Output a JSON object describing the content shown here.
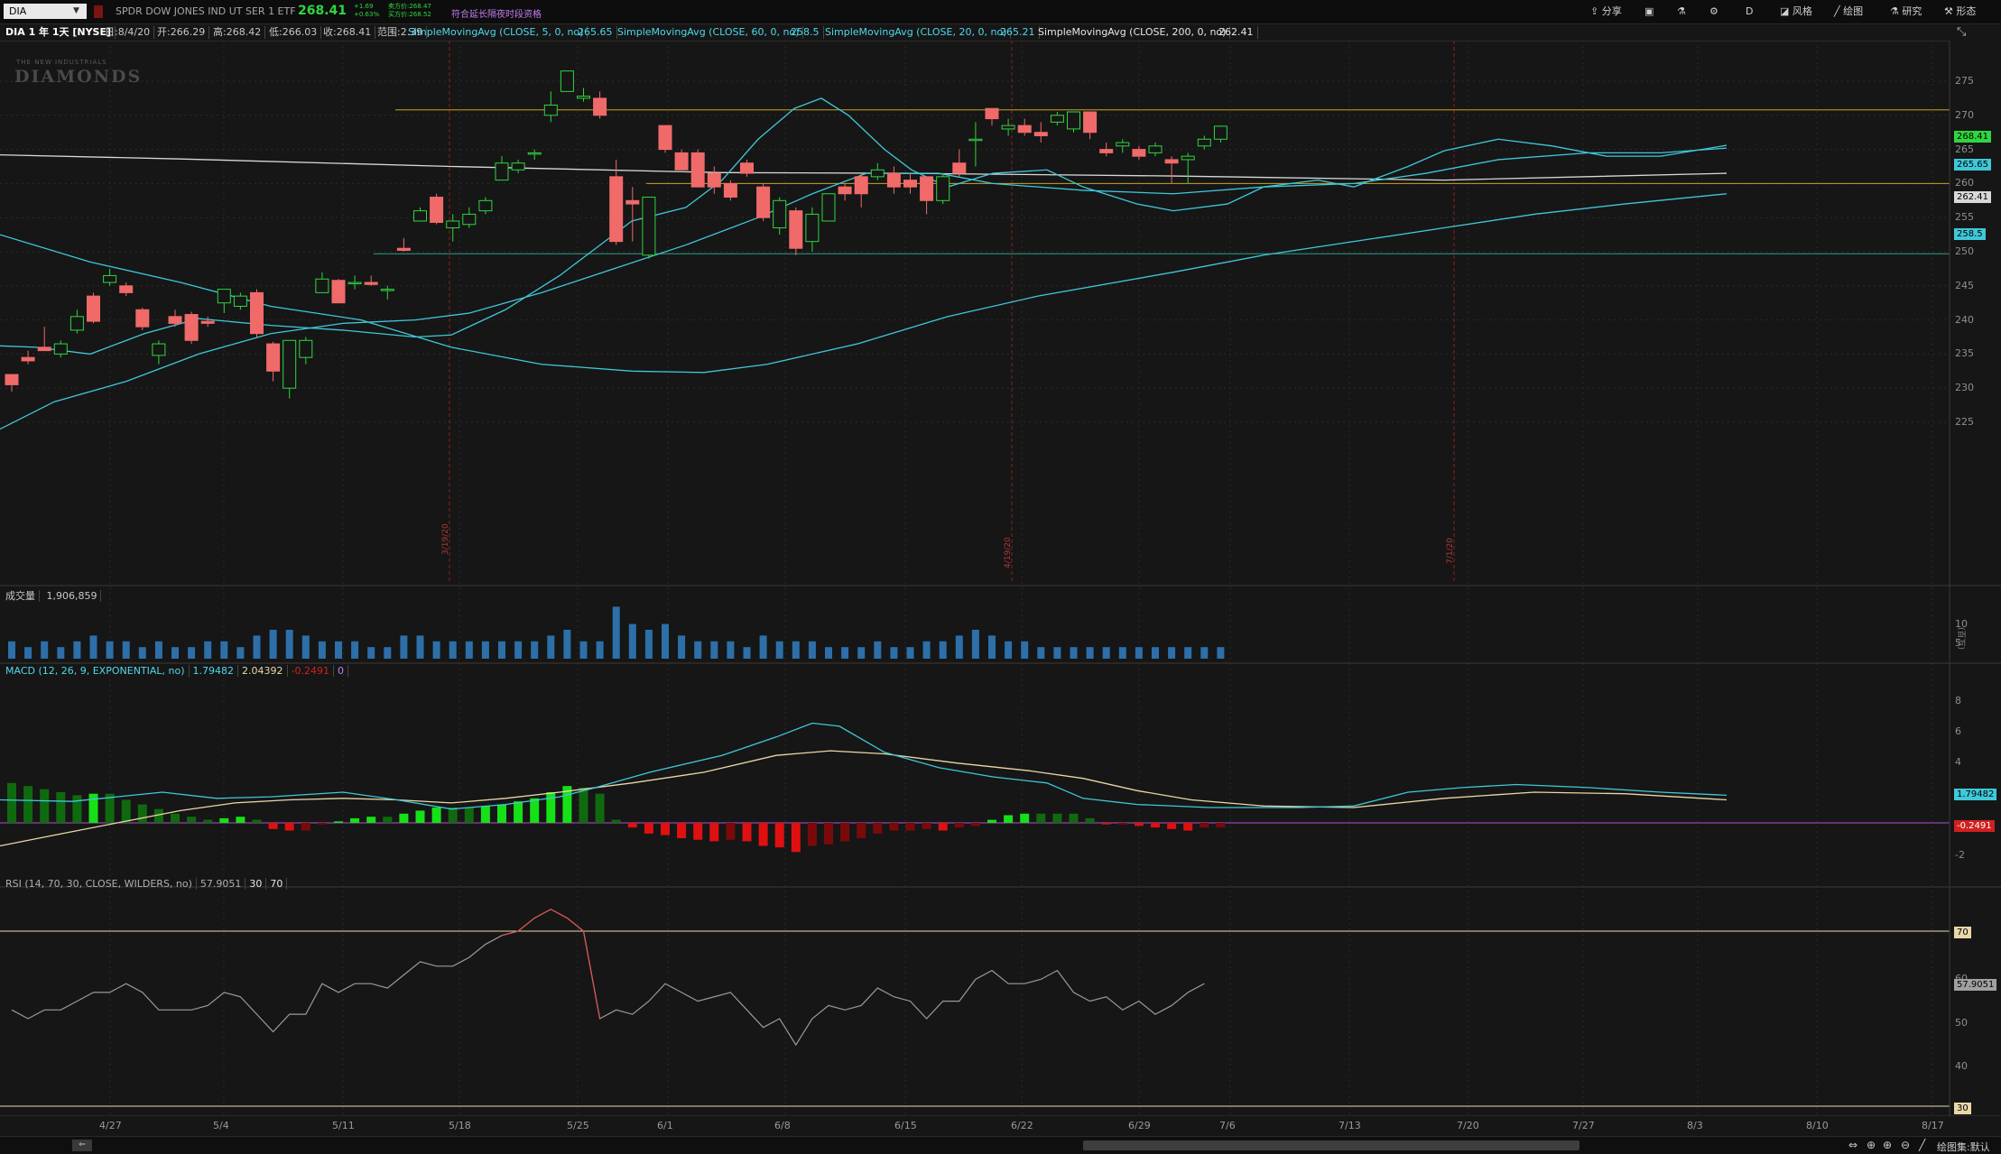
{
  "symbol": "DIA",
  "description": "SPDR DOW JONES IND UT SER 1 ETF",
  "last_price": "268.41",
  "change": "+1.69",
  "change_pct": "+0.63%",
  "bid": "卖方价:268.47",
  "ask": "买方价:268.52",
  "extended_hours": "符合延长隔夜时段资格",
  "toolbar": {
    "share": "分享",
    "period": "D",
    "style": "风格",
    "drawing": "绘图",
    "research": "研究",
    "pattern": "形态"
  },
  "info": {
    "chart_title": "DIA 1 年 1天 [NYSE]",
    "date": "日:8/4/20",
    "open": "开:266.29",
    "high": "高:268.42",
    "low": "低:266.03",
    "close": "收:268.41",
    "range": "范围:2.39",
    "sma5_label": "SimpleMovingAvg (CLOSE, 5, 0, no)",
    "sma5_val": "265.65",
    "sma60_label": "SimpleMovingAvg (CLOSE, 60, 0, no)",
    "sma60_val": "258.5",
    "sma20_label": "SimpleMovingAvg (CLOSE, 20, 0, no)",
    "sma20_val": "265.21",
    "sma200_label": "SimpleMovingAvg (CLOSE, 200, 0, no)",
    "sma200_val": "262.41"
  },
  "watermark": {
    "top": "THE NEW INDUSTRIALS",
    "main": "DIAMONDS"
  },
  "price_axis": [
    "275",
    "270",
    "265",
    "260",
    "255",
    "250",
    "245",
    "240",
    "235",
    "230",
    "225"
  ],
  "price_tags": {
    "last": "268.41",
    "sma5": "265.65",
    "sma200": "262.41",
    "sma60": "258.5"
  },
  "vertical_date_markers": [
    "3/19/20",
    "4/19/20",
    "7/1/20"
  ],
  "volume": {
    "label": "成交量",
    "value": "1,906,859",
    "axis": [
      "10",
      "5"
    ],
    "unit": "(百万)"
  },
  "macd": {
    "label": "MACD (12, 26, 9, EXPONENTIAL, no)",
    "value": "1.79482",
    "avg": "2.04392",
    "diff": "-0.2491",
    "zero": "0",
    "axis": [
      "8",
      "6",
      "4",
      "-2"
    ],
    "tag_value": "1.79482",
    "tag_diff": "-0.2491"
  },
  "rsi": {
    "label": "RSI (14, 70, 30, CLOSE, WILDERS, no)",
    "value": "57.9051",
    "oversold": "30",
    "overbought": "70",
    "axis": [
      "60",
      "50",
      "40"
    ],
    "tag_value": "57.9051",
    "tag_70": "70",
    "tag_30": "30"
  },
  "time_axis": [
    "4/27",
    "5/4",
    "5/11",
    "5/18",
    "5/25",
    "6/1",
    "6/8",
    "6/15",
    "6/22",
    "6/29",
    "7/6",
    "7/13",
    "7/20",
    "7/27",
    "8/3",
    "8/10",
    "8/17"
  ],
  "status": "绘图集:默认",
  "colors": {
    "up": "#2fd640",
    "down": "#f06a6a",
    "sma": "#3fc8d8",
    "sma200": "#d8d8d8",
    "level": "#c9a227"
  }
}
